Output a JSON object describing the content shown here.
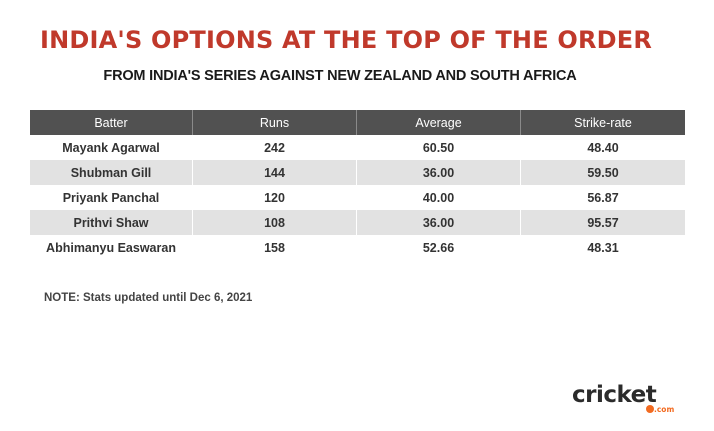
{
  "page": {
    "title": "INDIA'S OPTIONS AT THE TOP OF THE ORDER",
    "subtitle": "FROM INDIA'S SERIES AGAINST NEW ZEALAND AND SOUTH AFRICA",
    "note": "NOTE: Stats updated until Dec 6, 2021"
  },
  "brand": {
    "wordmark": "cricket",
    "suffix": ".com"
  },
  "colors": {
    "title": "#c0392b",
    "header_bg": "#515151",
    "row_alt_bg": "#e2e2e2",
    "row_bg": "#ffffff",
    "brand_accent": "#f26b21"
  },
  "chart_data": {
    "type": "table",
    "columns": [
      "Batter",
      "Runs",
      "Average",
      "Strike-rate"
    ],
    "rows": [
      [
        "Mayank Agarwal",
        "242",
        "60.50",
        "48.40"
      ],
      [
        "Shubman Gill",
        "144",
        "36.00",
        "59.50"
      ],
      [
        "Priyank Panchal",
        "120",
        "40.00",
        "56.87"
      ],
      [
        "Prithvi Shaw",
        "108",
        "36.00",
        "95.57"
      ],
      [
        "Abhimanyu Easwaran",
        "158",
        "52.66",
        "48.31"
      ]
    ]
  }
}
